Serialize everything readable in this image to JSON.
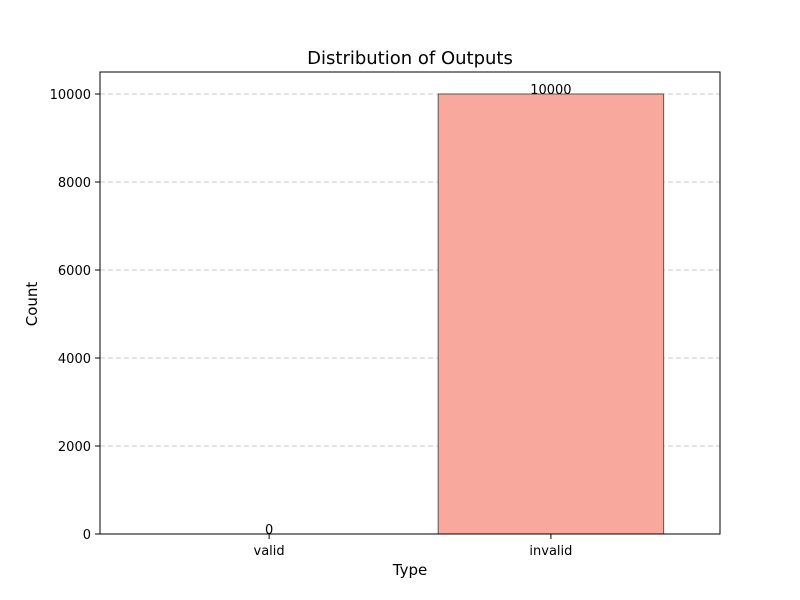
{
  "chart_data": {
    "type": "bar",
    "title": "Distribution of Outputs",
    "xlabel": "Type",
    "ylabel": "Count",
    "categories": [
      "valid",
      "invalid"
    ],
    "values": [
      0,
      10000
    ],
    "data_labels": [
      "0",
      "10000"
    ],
    "ylim": [
      0,
      10500
    ],
    "yticks": [
      0,
      2000,
      4000,
      6000,
      8000,
      10000
    ],
    "ytick_labels": [
      "0",
      "2000",
      "4000",
      "6000",
      "8000",
      "10000"
    ],
    "grid": "y-dashed",
    "colors": {
      "valid": "#87ceeb",
      "invalid": "#f9a89e",
      "edge": "#555555",
      "grid": "#c8c8c8"
    }
  }
}
